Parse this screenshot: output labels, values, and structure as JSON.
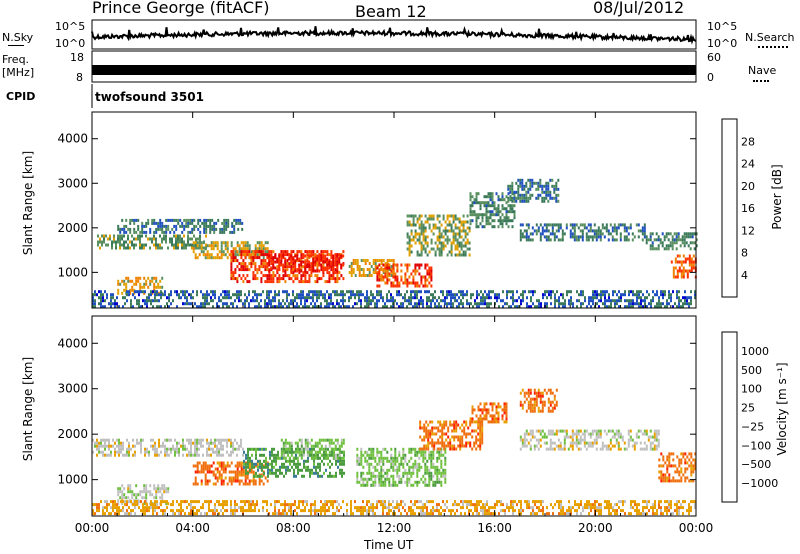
{
  "header": {
    "title": "Prince George (fitACF)",
    "beam": "Beam 12",
    "date": "08/Jul/2012"
  },
  "strips": {
    "nsky_label": "N.Sky",
    "nsearch_label": "N.Search",
    "nsky_ticks": [
      "10^5",
      "10^0"
    ],
    "nsearch_ticks": [
      "10^5",
      "10^0"
    ],
    "freq_label_line1": "Freq.",
    "freq_label_line2": "[MHz]",
    "freq_ticks": [
      "18",
      "8"
    ],
    "nave_label": "Nave",
    "nave_ticks": [
      "60",
      "0"
    ],
    "cpid_label": "CPID",
    "cpid_value": "twofsound 3501"
  },
  "colors": {
    "power_scale": [
      "#0000d0",
      "#2050c0",
      "#3a7a5a",
      "#5a9060",
      "#e0a000",
      "#f08000",
      "#ff3000",
      "#e00000"
    ],
    "velocity_scale": [
      "#2040c0",
      "#3a7a9a",
      "#4a9a40",
      "#70c040",
      "#c0c0c0",
      "#e8a000",
      "#f07010",
      "#ff2000"
    ]
  },
  "chart_data": [
    {
      "type": "heatmap",
      "name": "power",
      "ylabel": "Slant Range [km]",
      "yticks": [
        "4000",
        "3000",
        "2000",
        "1000"
      ],
      "ylim": [
        200,
        4600
      ],
      "xticks": [
        "00:00",
        "04:00",
        "08:00",
        "12:00",
        "16:00",
        "20:00",
        "00:00"
      ],
      "xlim_hours": [
        0,
        24
      ],
      "colorbar_label": "Power [dB]",
      "colorbar_ticks": [
        "28",
        "24",
        "20",
        "16",
        "12",
        "8",
        "4"
      ],
      "colorbar_range": [
        0,
        30
      ],
      "features": [
        {
          "t0": 0.2,
          "t1": 4.5,
          "r0": 1550,
          "r1": 1850,
          "level": 12
        },
        {
          "t0": 1.0,
          "t1": 6.0,
          "r0": 1900,
          "r1": 2200,
          "level": 8
        },
        {
          "t0": 1.0,
          "t1": 2.8,
          "r0": 500,
          "r1": 900,
          "level": 18
        },
        {
          "t0": 4.0,
          "t1": 7.0,
          "r0": 1300,
          "r1": 1700,
          "level": 16
        },
        {
          "t0": 5.5,
          "t1": 10.0,
          "r0": 800,
          "r1": 1500,
          "level": 26
        },
        {
          "t0": 7.0,
          "t1": 10.0,
          "r0": 1000,
          "r1": 1400,
          "level": 28
        },
        {
          "t0": 10.2,
          "t1": 12.0,
          "r0": 900,
          "r1": 1300,
          "level": 18
        },
        {
          "t0": 11.3,
          "t1": 13.5,
          "r0": 700,
          "r1": 1200,
          "level": 26
        },
        {
          "t0": 12.5,
          "t1": 15.0,
          "r0": 1400,
          "r1": 2300,
          "level": 14
        },
        {
          "t0": 15.0,
          "t1": 16.8,
          "r0": 2000,
          "r1": 2800,
          "level": 10
        },
        {
          "t0": 16.5,
          "t1": 18.5,
          "r0": 2600,
          "r1": 3100,
          "level": 8
        },
        {
          "t0": 17.0,
          "t1": 22.0,
          "r0": 1700,
          "r1": 2100,
          "level": 8
        },
        {
          "t0": 22.0,
          "t1": 24.0,
          "r0": 1500,
          "r1": 1900,
          "level": 10
        },
        {
          "t0": 23.0,
          "t1": 24.0,
          "r0": 900,
          "r1": 1400,
          "level": 24
        },
        {
          "t0": 0.0,
          "t1": 24.0,
          "r0": 250,
          "r1": 600,
          "level": 6
        }
      ]
    },
    {
      "type": "heatmap",
      "name": "velocity",
      "ylabel": "Slant Range [km]",
      "yticks": [
        "4000",
        "3000",
        "2000",
        "1000"
      ],
      "ylim": [
        200,
        4600
      ],
      "xticks": [
        "00:00",
        "04:00",
        "08:00",
        "12:00",
        "16:00",
        "20:00",
        "00:00"
      ],
      "xlim_hours": [
        0,
        24
      ],
      "xlabel": "Time UT",
      "colorbar_label": "Velocity [m s⁻¹]",
      "colorbar_ticks": [
        "1000",
        "500",
        "100",
        "25",
        "−25",
        "−100",
        "−500",
        "−1000"
      ],
      "features": [
        {
          "t0": 0.0,
          "t1": 6.0,
          "r0": 1550,
          "r1": 1900,
          "color": 4
        },
        {
          "t0": 1.0,
          "t1": 3.0,
          "r0": 500,
          "r1": 900,
          "color": 4
        },
        {
          "t0": 4.0,
          "t1": 7.0,
          "r0": 900,
          "r1": 1400,
          "color": 6
        },
        {
          "t0": 6.0,
          "t1": 10.0,
          "r0": 1100,
          "r1": 1700,
          "color": 2
        },
        {
          "t0": 7.5,
          "t1": 10.0,
          "r0": 1500,
          "r1": 1900,
          "color": 3
        },
        {
          "t0": 10.5,
          "t1": 14.0,
          "r0": 900,
          "r1": 1700,
          "color": 3
        },
        {
          "t0": 13.0,
          "t1": 15.5,
          "r0": 1700,
          "r1": 2300,
          "color": 6
        },
        {
          "t0": 15.0,
          "t1": 16.5,
          "r0": 2300,
          "r1": 2700,
          "color": 6
        },
        {
          "t0": 17.0,
          "t1": 18.5,
          "r0": 2500,
          "r1": 3000,
          "color": 6
        },
        {
          "t0": 17.0,
          "t1": 22.5,
          "r0": 1700,
          "r1": 2100,
          "color": 4
        },
        {
          "t0": 22.5,
          "t1": 24.0,
          "r0": 1000,
          "r1": 1600,
          "color": 6
        },
        {
          "t0": 0.0,
          "t1": 24.0,
          "r0": 250,
          "r1": 550,
          "color": 5
        }
      ]
    }
  ]
}
